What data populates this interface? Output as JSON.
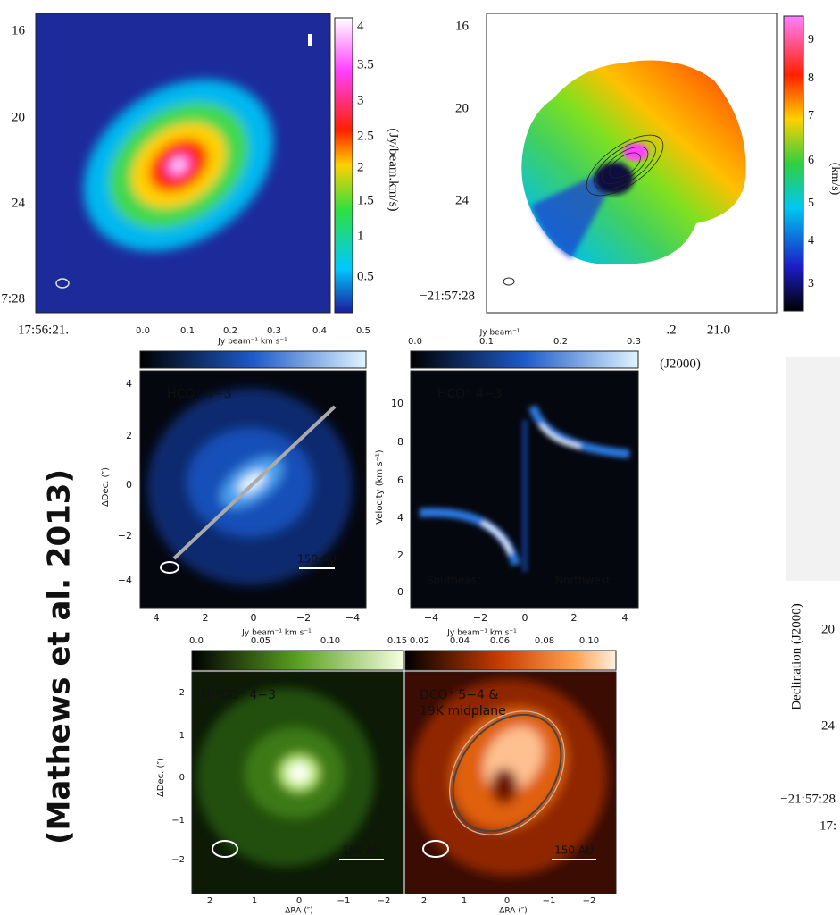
{
  "citation": "(Mathews et al. 2013)",
  "panel_a": {
    "yticks": [
      "16",
      "20",
      "24",
      "7:28"
    ],
    "xtick": "17:56:21.",
    "colorbar": {
      "ticks": [
        "4",
        "3.5",
        "3",
        "2.5",
        "2",
        "1.5",
        "1",
        "0.5"
      ],
      "label": "(Jy/beam.km/s)"
    }
  },
  "panel_b": {
    "yticks": [
      "16",
      "20",
      "24",
      "−21:57:28"
    ],
    "xticks": [
      ".2",
      "21.0"
    ],
    "xlabel": "(J2000)",
    "colorbar": {
      "ticks": [
        "9",
        "8",
        "7",
        "6",
        "5",
        "4",
        "3"
      ],
      "label": "(km/s)"
    }
  },
  "panel_c": {
    "title": "HCO⁺ 4−3",
    "scale": "150 AU",
    "ylabel": "ΔDec. (″)",
    "yticks": [
      "4",
      "2",
      "0",
      "−2",
      "−4"
    ],
    "xticks": [
      "4",
      "2",
      "0",
      "−2",
      "−4"
    ],
    "colorbar": {
      "label": "Jy beam⁻¹ km s⁻¹",
      "ticks": [
        "0.0",
        "0.1",
        "0.2",
        "0.3",
        "0.4",
        "0.5"
      ]
    }
  },
  "panel_d": {
    "title": "HCO⁺ 4−3",
    "left_label": "Southeast",
    "right_label": "Northwest",
    "ylabel": "Velocity (km s⁻¹)",
    "yticks": [
      "10",
      "8",
      "6",
      "4",
      "2",
      "0"
    ],
    "xticks": [
      "−4",
      "−2",
      "0",
      "2",
      "4"
    ],
    "colorbar": {
      "label": "Jy beam⁻¹",
      "ticks": [
        "0.0",
        "0.1",
        "0.2",
        "0.3"
      ]
    }
  },
  "panel_e": {
    "title": "H¹³CO⁺ 4−3",
    "scale": "150 AU",
    "ylabel": "ΔDec. (″)",
    "xlabel": "ΔRA (″)",
    "yticks": [
      "2",
      "1",
      "0",
      "−1",
      "−2"
    ],
    "xticks": [
      "2",
      "1",
      "0",
      "−1",
      "−2"
    ],
    "colorbar": {
      "label": "Jy beam⁻¹ km s⁻¹",
      "ticks": [
        "0.0",
        "0.05",
        "0.10",
        "0.15"
      ]
    }
  },
  "panel_f": {
    "title": [
      "DCO⁺ 5−4 &",
      "19K midplane"
    ],
    "scale": "150 AU",
    "xlabel": "ΔRA (″)",
    "xticks": [
      "2",
      "1",
      "0",
      "−1",
      "−2"
    ],
    "colorbar": {
      "label": "Jy beam⁻¹ km s⁻¹",
      "ticks": [
        "0.02",
        "0.04",
        "0.06",
        "0.08",
        "0.10"
      ]
    }
  },
  "panel_g": {
    "ylabel": "Declination (J2000)",
    "yticks": [
      "20",
      "24",
      "−21:57:28"
    ],
    "xtick": "17:"
  }
}
